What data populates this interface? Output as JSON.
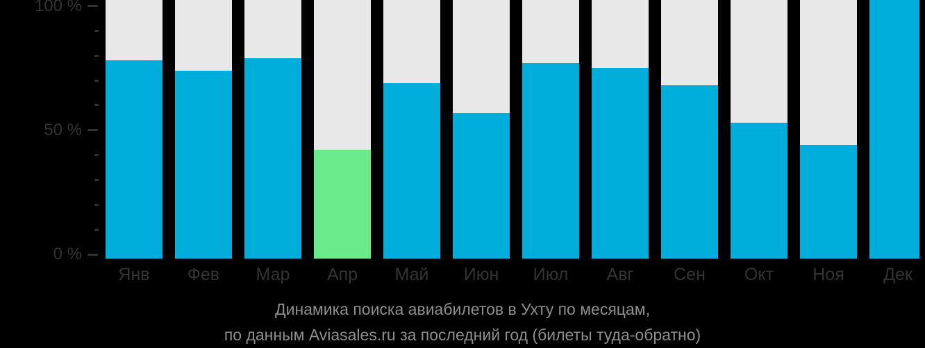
{
  "page": {
    "background": "#000000"
  },
  "chart_data": {
    "type": "bar",
    "title": "Динамика поиска авиабилетов в Ухту по месяцам,",
    "subtitle": "по данным Aviasales.ru за последний год (билеты туда-обратно)",
    "categories": [
      "Янв",
      "Фев",
      "Мар",
      "Апр",
      "Май",
      "Июн",
      "Июл",
      "Авг",
      "Сен",
      "Окт",
      "Ноя",
      "Дек"
    ],
    "values": [
      78,
      74,
      79,
      42,
      69,
      57,
      77,
      75,
      68,
      53,
      44,
      100
    ],
    "unit": "%",
    "highlight_index": 3,
    "xlabel": "",
    "ylabel": "",
    "ylim": [
      0,
      100
    ],
    "yticks": [
      {
        "value": 0,
        "label": "0 %"
      },
      {
        "value": 50,
        "label": "50 %"
      },
      {
        "value": 100,
        "label": "100 %"
      }
    ],
    "minor_tick_step": 10,
    "grid": false,
    "legend_position": "none",
    "colors": {
      "bar": "#00AEDC",
      "highlight": "#6BEA8B",
      "track": "#E8E8E8",
      "axis_text": "#333333",
      "caption_text": "#8E8E8E",
      "background": "#000000"
    }
  }
}
